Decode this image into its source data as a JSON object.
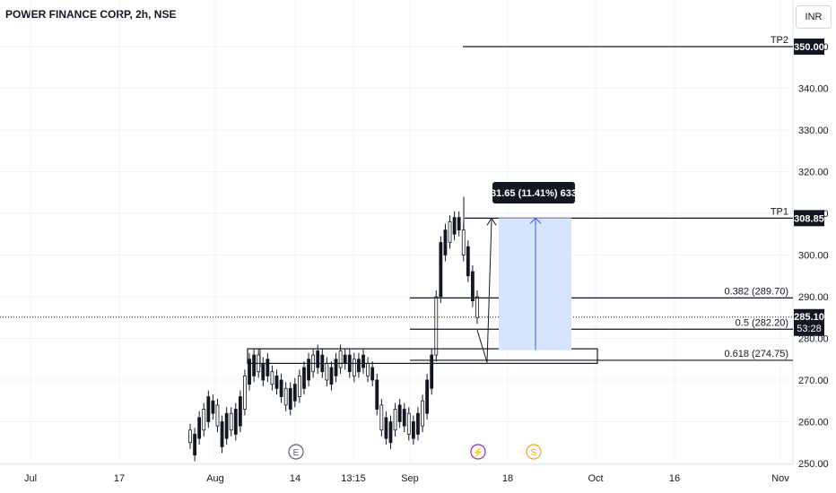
{
  "header": {
    "title": "POWER FINANCE CORP, 2h, NSE",
    "currency": "INR"
  },
  "chart_data": {
    "type": "candlestick",
    "symbol": "POWER FINANCE CORP",
    "interval": "2h",
    "exchange": "NSE",
    "ylim": [
      250,
      357
    ],
    "y_ticks": [
      250,
      260,
      270,
      280,
      290,
      300,
      310,
      320,
      330,
      340,
      350
    ],
    "y_tick_labels": [
      "250.00",
      "260.00",
      "270.00",
      "280.00",
      "290.00",
      "300.00",
      "310.00",
      "320.00",
      "330.00",
      "340.00",
      "350.00"
    ],
    "x_tick_labels": [
      "Jul",
      "17",
      "Aug",
      "14",
      "13:15",
      "Sep",
      "18",
      "Oct",
      "16",
      "Nov"
    ],
    "price_path": [
      [
        255,
        258
      ],
      [
        252,
        257
      ],
      [
        256,
        261
      ],
      [
        258,
        263
      ],
      [
        260,
        266
      ],
      [
        262,
        265
      ],
      [
        259,
        264
      ],
      [
        254,
        260
      ],
      [
        256,
        262
      ],
      [
        258,
        262
      ],
      [
        257,
        263
      ],
      [
        259,
        266
      ],
      [
        263,
        271
      ],
      [
        269,
        275
      ],
      [
        271,
        276
      ],
      [
        272,
        276
      ],
      [
        270,
        274
      ],
      [
        271,
        275
      ],
      [
        269,
        272
      ],
      [
        268,
        271
      ],
      [
        266,
        270
      ],
      [
        264,
        268
      ],
      [
        263,
        268
      ],
      [
        265,
        269
      ],
      [
        266,
        271
      ],
      [
        268,
        273
      ],
      [
        270,
        275
      ],
      [
        272,
        276
      ],
      [
        273,
        277
      ],
      [
        272,
        276
      ],
      [
        270,
        274
      ],
      [
        269,
        273
      ],
      [
        271,
        275
      ],
      [
        273,
        277
      ],
      [
        274,
        276
      ],
      [
        272,
        276
      ],
      [
        271,
        275
      ],
      [
        272,
        275
      ],
      [
        273,
        276
      ],
      [
        271,
        274
      ],
      [
        270,
        273
      ],
      [
        263,
        270
      ],
      [
        258,
        264
      ],
      [
        256,
        261
      ],
      [
        255,
        260
      ],
      [
        258,
        263
      ],
      [
        260,
        264
      ],
      [
        259,
        263
      ],
      [
        257,
        262
      ],
      [
        256,
        260
      ],
      [
        257,
        262
      ],
      [
        259,
        265
      ],
      [
        262,
        270
      ],
      [
        268,
        276
      ],
      [
        276,
        290
      ],
      [
        290,
        303
      ],
      [
        300,
        306
      ],
      [
        303,
        308
      ],
      [
        305,
        309
      ],
      [
        306,
        309
      ],
      [
        300,
        306
      ],
      [
        295,
        302
      ],
      [
        289,
        296
      ],
      [
        285,
        290
      ]
    ],
    "current_price": "285.10",
    "countdown": "53:28",
    "levels": [
      {
        "label": "TP2",
        "value": 350.0,
        "price_tag": "350.00"
      },
      {
        "label": "TP1",
        "value": 308.85,
        "price_tag": "308.85"
      },
      {
        "label": "0.382 (289.70)",
        "value": 289.7
      },
      {
        "label": "0.5 (282.20)",
        "value": 282.2
      },
      {
        "label": "0.618 (274.75)",
        "value": 274.75
      }
    ],
    "zone": {
      "low": 274,
      "high": 277.5
    },
    "projection": {
      "from": 277.2,
      "to": 308.85,
      "label": "31.65 (11.41%) 633"
    },
    "events": [
      {
        "type": "earnings",
        "label": "E"
      },
      {
        "type": "split",
        "label": "⚡"
      },
      {
        "type": "dividend",
        "label": "S"
      }
    ]
  },
  "colors": {
    "up": "#089981",
    "down": "#131722",
    "candle": "#131722",
    "projection_fill": "#d6e4fd",
    "projection_line": "#2962ff",
    "grid": "#f0f3fa"
  }
}
